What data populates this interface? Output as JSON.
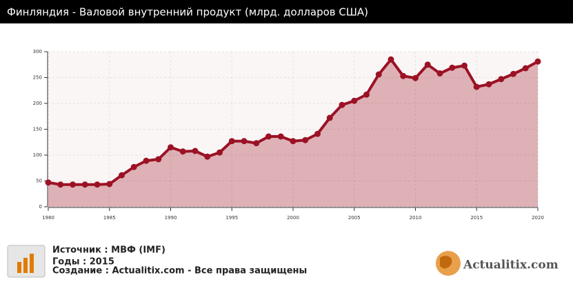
{
  "chart_data": {
    "type": "line",
    "title": "Финляндия - Валовой внутренний продукт (млрд. долларов США)",
    "x": [
      1980,
      1981,
      1982,
      1983,
      1984,
      1985,
      1986,
      1987,
      1988,
      1989,
      1990,
      1991,
      1992,
      1993,
      1994,
      1995,
      1996,
      1997,
      1998,
      1999,
      2000,
      2001,
      2002,
      2003,
      2004,
      2005,
      2006,
      2007,
      2008,
      2009,
      2010,
      2011,
      2012,
      2013,
      2014,
      2015,
      2016,
      2017,
      2018,
      2019,
      2020
    ],
    "series": [
      {
        "color": "#9b1224",
        "values": [
          47,
          43,
          43,
          43,
          43,
          44,
          61,
          77,
          89,
          92,
          115,
          107,
          108,
          97,
          105,
          127,
          127,
          123,
          136,
          136,
          127,
          129,
          141,
          172,
          197,
          205,
          217,
          256,
          285,
          253,
          249,
          275,
          258,
          269,
          273,
          232,
          237,
          247,
          257,
          268,
          281
        ]
      }
    ],
    "xlim": [
      1980,
      2020
    ],
    "xticks": [
      1980,
      1985,
      1990,
      1995,
      2000,
      2005,
      2010,
      2015,
      2020
    ],
    "ylim": [
      0,
      300
    ],
    "yticks": [
      0,
      50,
      100,
      150,
      200,
      250,
      300
    ],
    "grid": true
  },
  "footer": {
    "source": "Источник : МВФ (IMF)",
    "years": "Годы : 2015",
    "credit": "Создание : Actualitix.com -  Все права защищены",
    "logo": "Actualitix.com"
  }
}
